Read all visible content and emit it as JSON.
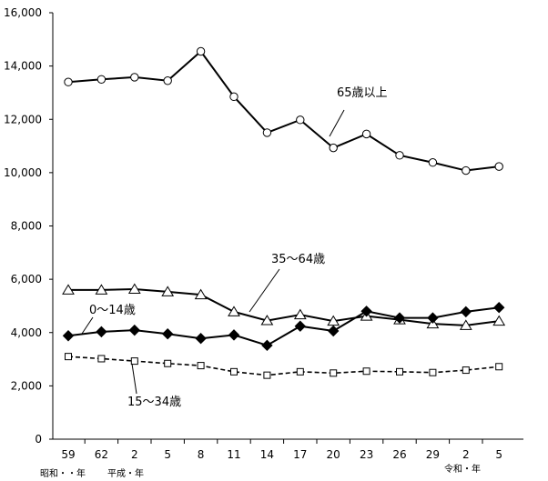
{
  "chart_data": {
    "type": "line",
    "categories": [
      "59",
      "62",
      "2",
      "5",
      "8",
      "11",
      "14",
      "17",
      "20",
      "23",
      "26",
      "29",
      "2",
      "5"
    ],
    "era_labels": [
      "昭和・・年",
      "平成・年",
      "令和・年"
    ],
    "yticks": [
      "0",
      "2,000",
      "4,000",
      "6,000",
      "8,000",
      "10,000",
      "12,000",
      "14,000",
      "16,000"
    ],
    "ylim": [
      0,
      16000
    ],
    "grid": false,
    "series": [
      {
        "name": "65歳以上",
        "marker": "circle",
        "dash": false,
        "color": "#000000",
        "values": [
          13400,
          13500,
          13580,
          13450,
          14550,
          12850,
          11500,
          11980,
          10930,
          11450,
          10650,
          10380,
          10080,
          10230
        ]
      },
      {
        "name": "35～64歳",
        "marker": "triangle",
        "dash": false,
        "color": "#000000",
        "values": [
          5600,
          5600,
          5630,
          5530,
          5420,
          4780,
          4450,
          4670,
          4430,
          4620,
          4480,
          4330,
          4270,
          4430
        ]
      },
      {
        "name": "0～14歳",
        "marker": "diamond",
        "dash": false,
        "color": "#000000",
        "values": [
          3880,
          4030,
          4090,
          3950,
          3780,
          3910,
          3520,
          4240,
          4060,
          4800,
          4550,
          4550,
          4780,
          4940
        ]
      },
      {
        "name": "15～34歳",
        "marker": "square",
        "dash": true,
        "color": "#000000",
        "values": [
          3100,
          3020,
          2930,
          2840,
          2760,
          2530,
          2400,
          2530,
          2480,
          2550,
          2530,
          2500,
          2590,
          2720
        ]
      }
    ]
  }
}
